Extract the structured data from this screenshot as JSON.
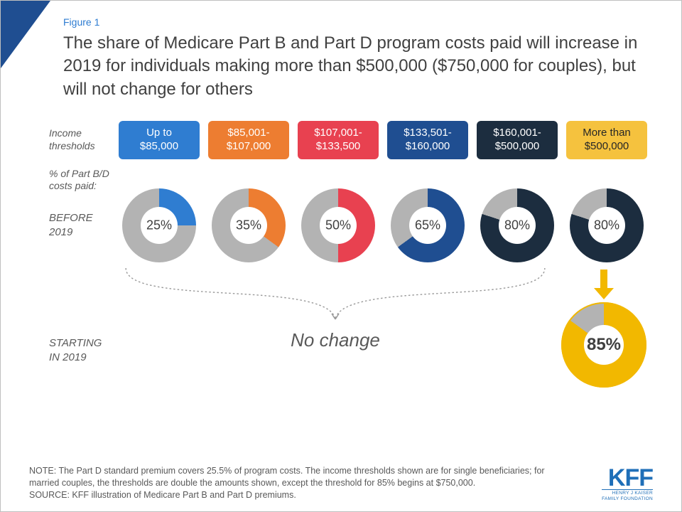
{
  "figure_label": "Figure 1",
  "title": "The share of Medicare Part B and Part D program costs paid will increase in 2019 for individuals making more than $500,000 ($750,000 for couples), but will not change for others",
  "labels": {
    "income_thresholds": "Income thresholds",
    "costs_paid": "% of Part B/D costs paid:",
    "before": "BEFORE 2019",
    "starting": "STARTING IN 2019",
    "no_change": "No change"
  },
  "colors": {
    "grey": "#b3b3b3",
    "text": "#404040",
    "muted": "#595959",
    "brace": "#9a9a9a",
    "big_donut_border": "#f2b800"
  },
  "thresholds": [
    {
      "line1": "Up to",
      "line2": "$85,000",
      "color": "#2f7dd1",
      "pill_text": "#ffffff"
    },
    {
      "line1": "$85,001-",
      "line2": "$107,000",
      "color": "#ed7d31",
      "pill_text": "#ffffff"
    },
    {
      "line1": "$107,001-",
      "line2": "$133,500",
      "color": "#e84150",
      "pill_text": "#ffffff"
    },
    {
      "line1": "$133,501-",
      "line2": "$160,000",
      "color": "#1f4e91",
      "pill_text": "#ffffff"
    },
    {
      "line1": "$160,001-",
      "line2": "$500,000",
      "color": "#1c2d3f",
      "pill_text": "#ffffff"
    },
    {
      "line1": "More than",
      "line2": "$500,000",
      "color": "#f5c23e",
      "pill_text": "#262626"
    }
  ],
  "donuts_before": [
    {
      "pct": 25,
      "color": "#2f7dd1",
      "label": "25%"
    },
    {
      "pct": 35,
      "color": "#ed7d31",
      "label": "35%"
    },
    {
      "pct": 50,
      "color": "#e84150",
      "label": "50%"
    },
    {
      "pct": 65,
      "color": "#1f4e91",
      "label": "65%"
    },
    {
      "pct": 80,
      "color": "#1c2d3f",
      "label": "80%"
    },
    {
      "pct": 80,
      "color": "#1c2d3f",
      "label": "80%"
    }
  ],
  "donut_after": {
    "pct": 85,
    "color": "#f2b800",
    "label": "85%"
  },
  "arrow_color": "#f2b800",
  "note": "NOTE: The Part D standard premium covers 25.5% of program costs. The income thresholds shown are for single beneficiaries; for married couples, the thresholds are double the amounts shown, except the threshold for 85% begins at $750,000.",
  "source": "SOURCE: KFF illustration of Medicare Part B and Part D premiums.",
  "logo": {
    "main": "KFF",
    "sub1": "HENRY J KAISER",
    "sub2": "FAMILY FOUNDATION"
  }
}
